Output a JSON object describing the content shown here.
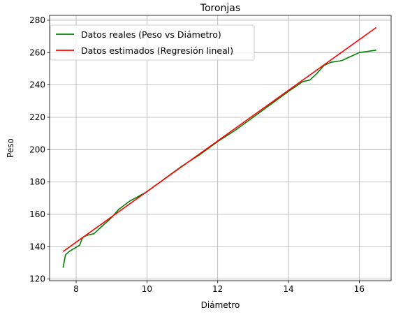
{
  "chart_data": {
    "type": "line",
    "title": "Toronjas",
    "xlabel": "Diámetro",
    "ylabel": "Peso",
    "xlim": [
      7.25,
      16.9
    ],
    "ylim": [
      119,
      283
    ],
    "xticks": [
      8,
      10,
      12,
      14,
      16
    ],
    "yticks": [
      120,
      140,
      160,
      180,
      200,
      220,
      240,
      260,
      280
    ],
    "grid": true,
    "legend_position": "top-left",
    "series": [
      {
        "name": "Datos reales (Peso vs Diámetro)",
        "color": "#008000",
        "x": [
          7.63,
          7.7,
          7.8,
          7.95,
          8.1,
          8.17,
          8.2,
          8.3,
          8.5,
          8.6,
          8.8,
          9.0,
          9.2,
          9.5,
          10.0,
          10.5,
          11.0,
          11.5,
          12.0,
          12.5,
          13.0,
          13.5,
          14.0,
          14.4,
          14.6,
          14.8,
          15.0,
          15.2,
          15.5,
          16.0,
          16.48
        ],
        "y": [
          127,
          135,
          137,
          139,
          141,
          145,
          146,
          147,
          148,
          150,
          154,
          158,
          163,
          168,
          174,
          182,
          190,
          197,
          205,
          212,
          220,
          228,
          236,
          242,
          243,
          247,
          252,
          254,
          255,
          260,
          261.5
        ]
      },
      {
        "name": "Datos estimados (Regresión lineal)",
        "color": "#ff0000",
        "x": [
          7.63,
          16.48
        ],
        "y": [
          137,
          275.5
        ]
      }
    ]
  }
}
